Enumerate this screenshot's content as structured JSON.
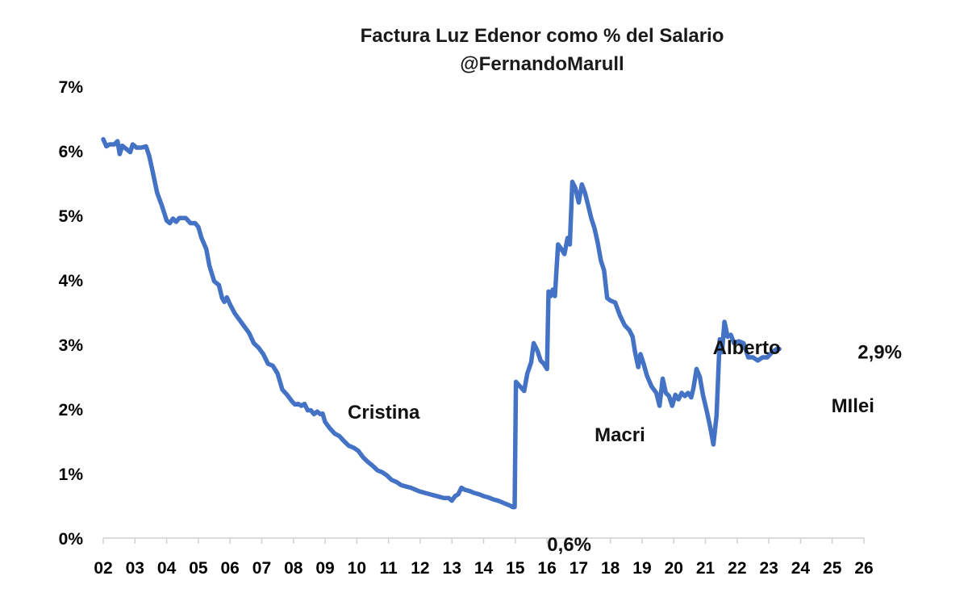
{
  "chart_data": {
    "type": "line",
    "title": "Factura Luz Edenor como % del Salario",
    "subtitle": "@FernandoMarull",
    "xlabel": "",
    "ylabel": "",
    "xlim": [
      2002,
      2026.2
    ],
    "ylim": [
      0,
      7
    ],
    "grid": false,
    "legend": "none",
    "line_color": "#4472C4",
    "y_ticks": [
      {
        "value": 0,
        "label": "0%"
      },
      {
        "value": 1,
        "label": "1%"
      },
      {
        "value": 2,
        "label": "2%"
      },
      {
        "value": 3,
        "label": "3%"
      },
      {
        "value": 4,
        "label": "4%"
      },
      {
        "value": 5,
        "label": "5%"
      },
      {
        "value": 6,
        "label": "6%"
      },
      {
        "value": 7,
        "label": "7%"
      }
    ],
    "x_ticks": [
      {
        "value": 2002,
        "label": "02"
      },
      {
        "value": 2003,
        "label": "03"
      },
      {
        "value": 2004,
        "label": "04"
      },
      {
        "value": 2005,
        "label": "05"
      },
      {
        "value": 2006,
        "label": "06"
      },
      {
        "value": 2007,
        "label": "07"
      },
      {
        "value": 2008,
        "label": "08"
      },
      {
        "value": 2009,
        "label": "09"
      },
      {
        "value": 2010,
        "label": "10"
      },
      {
        "value": 2011,
        "label": "11"
      },
      {
        "value": 2012,
        "label": "12"
      },
      {
        "value": 2013,
        "label": "13"
      },
      {
        "value": 2014,
        "label": "14"
      },
      {
        "value": 2015,
        "label": "15"
      },
      {
        "value": 2016,
        "label": "16"
      },
      {
        "value": 2017,
        "label": "17"
      },
      {
        "value": 2018,
        "label": "18"
      },
      {
        "value": 2019,
        "label": "19"
      },
      {
        "value": 2020,
        "label": "20"
      },
      {
        "value": 2021,
        "label": "21"
      },
      {
        "value": 2022,
        "label": "22"
      },
      {
        "value": 2023,
        "label": "23"
      },
      {
        "value": 2024,
        "label": "24"
      },
      {
        "value": 2025,
        "label": "25"
      },
      {
        "value": 2026,
        "label": "26"
      }
    ],
    "series": [
      {
        "points": [
          [
            2002.0,
            6.18
          ],
          [
            2002.1,
            6.07
          ],
          [
            2002.2,
            6.1
          ],
          [
            2002.35,
            6.1
          ],
          [
            2002.45,
            6.15
          ],
          [
            2002.52,
            5.95
          ],
          [
            2002.6,
            6.08
          ],
          [
            2002.75,
            6.02
          ],
          [
            2002.85,
            5.98
          ],
          [
            2002.93,
            6.1
          ],
          [
            2003.05,
            6.05
          ],
          [
            2003.2,
            6.05
          ],
          [
            2003.35,
            6.07
          ],
          [
            2003.45,
            5.92
          ],
          [
            2003.55,
            5.7
          ],
          [
            2003.7,
            5.35
          ],
          [
            2003.85,
            5.15
          ],
          [
            2004.0,
            4.92
          ],
          [
            2004.1,
            4.88
          ],
          [
            2004.2,
            4.95
          ],
          [
            2004.3,
            4.9
          ],
          [
            2004.4,
            4.96
          ],
          [
            2004.6,
            4.96
          ],
          [
            2004.75,
            4.88
          ],
          [
            2004.9,
            4.88
          ],
          [
            2005.0,
            4.82
          ],
          [
            2005.1,
            4.65
          ],
          [
            2005.25,
            4.48
          ],
          [
            2005.35,
            4.22
          ],
          [
            2005.5,
            3.98
          ],
          [
            2005.65,
            3.92
          ],
          [
            2005.75,
            3.72
          ],
          [
            2005.82,
            3.66
          ],
          [
            2005.9,
            3.73
          ],
          [
            2006.0,
            3.62
          ],
          [
            2006.15,
            3.48
          ],
          [
            2006.3,
            3.38
          ],
          [
            2006.45,
            3.28
          ],
          [
            2006.6,
            3.18
          ],
          [
            2006.75,
            3.02
          ],
          [
            2006.9,
            2.95
          ],
          [
            2007.05,
            2.85
          ],
          [
            2007.2,
            2.7
          ],
          [
            2007.35,
            2.67
          ],
          [
            2007.5,
            2.55
          ],
          [
            2007.65,
            2.3
          ],
          [
            2007.8,
            2.22
          ],
          [
            2007.95,
            2.12
          ],
          [
            2008.05,
            2.07
          ],
          [
            2008.15,
            2.08
          ],
          [
            2008.25,
            2.05
          ],
          [
            2008.35,
            2.08
          ],
          [
            2008.45,
            1.98
          ],
          [
            2008.55,
            1.98
          ],
          [
            2008.65,
            1.92
          ],
          [
            2008.75,
            1.96
          ],
          [
            2008.85,
            1.92
          ],
          [
            2008.92,
            1.93
          ],
          [
            2009.0,
            1.8
          ],
          [
            2009.15,
            1.7
          ],
          [
            2009.3,
            1.62
          ],
          [
            2009.45,
            1.58
          ],
          [
            2009.6,
            1.5
          ],
          [
            2009.75,
            1.43
          ],
          [
            2009.9,
            1.4
          ],
          [
            2010.05,
            1.35
          ],
          [
            2010.2,
            1.25
          ],
          [
            2010.35,
            1.18
          ],
          [
            2010.5,
            1.12
          ],
          [
            2010.65,
            1.05
          ],
          [
            2010.8,
            1.02
          ],
          [
            2010.95,
            0.97
          ],
          [
            2011.1,
            0.9
          ],
          [
            2011.25,
            0.87
          ],
          [
            2011.4,
            0.82
          ],
          [
            2011.55,
            0.8
          ],
          [
            2011.7,
            0.78
          ],
          [
            2011.85,
            0.75
          ],
          [
            2012.0,
            0.72
          ],
          [
            2012.15,
            0.7
          ],
          [
            2012.3,
            0.68
          ],
          [
            2012.45,
            0.66
          ],
          [
            2012.6,
            0.64
          ],
          [
            2012.75,
            0.62
          ],
          [
            2012.9,
            0.62
          ],
          [
            2013.0,
            0.58
          ],
          [
            2013.1,
            0.65
          ],
          [
            2013.2,
            0.68
          ],
          [
            2013.3,
            0.78
          ],
          [
            2013.4,
            0.75
          ],
          [
            2013.55,
            0.73
          ],
          [
            2013.7,
            0.7
          ],
          [
            2013.85,
            0.68
          ],
          [
            2014.0,
            0.65
          ],
          [
            2014.15,
            0.63
          ],
          [
            2014.3,
            0.6
          ],
          [
            2014.45,
            0.58
          ],
          [
            2014.6,
            0.55
          ],
          [
            2014.75,
            0.52
          ],
          [
            2014.85,
            0.5
          ],
          [
            2014.92,
            0.48
          ],
          [
            2014.98,
            0.48
          ],
          [
            2015.02,
            2.42
          ],
          [
            2015.15,
            2.35
          ],
          [
            2015.28,
            2.28
          ],
          [
            2015.38,
            2.55
          ],
          [
            2015.5,
            2.72
          ],
          [
            2015.58,
            3.02
          ],
          [
            2015.7,
            2.9
          ],
          [
            2015.8,
            2.75
          ],
          [
            2015.9,
            2.7
          ],
          [
            2016.0,
            2.62
          ],
          [
            2016.05,
            3.82
          ],
          [
            2016.12,
            3.75
          ],
          [
            2016.18,
            3.85
          ],
          [
            2016.25,
            3.75
          ],
          [
            2016.35,
            4.55
          ],
          [
            2016.45,
            4.48
          ],
          [
            2016.55,
            4.4
          ],
          [
            2016.65,
            4.65
          ],
          [
            2016.72,
            4.55
          ],
          [
            2016.8,
            5.52
          ],
          [
            2016.9,
            5.42
          ],
          [
            2017.0,
            5.2
          ],
          [
            2017.1,
            5.48
          ],
          [
            2017.2,
            5.35
          ],
          [
            2017.3,
            5.15
          ],
          [
            2017.4,
            4.95
          ],
          [
            2017.5,
            4.8
          ],
          [
            2017.6,
            4.58
          ],
          [
            2017.7,
            4.3
          ],
          [
            2017.8,
            4.15
          ],
          [
            2017.9,
            3.72
          ],
          [
            2018.0,
            3.68
          ],
          [
            2018.15,
            3.65
          ],
          [
            2018.3,
            3.45
          ],
          [
            2018.45,
            3.3
          ],
          [
            2018.6,
            3.22
          ],
          [
            2018.7,
            3.12
          ],
          [
            2018.78,
            2.88
          ],
          [
            2018.88,
            2.65
          ],
          [
            2018.95,
            2.85
          ],
          [
            2019.05,
            2.7
          ],
          [
            2019.15,
            2.52
          ],
          [
            2019.3,
            2.35
          ],
          [
            2019.45,
            2.25
          ],
          [
            2019.55,
            2.05
          ],
          [
            2019.65,
            2.47
          ],
          [
            2019.75,
            2.25
          ],
          [
            2019.85,
            2.2
          ],
          [
            2019.95,
            2.05
          ],
          [
            2020.05,
            2.22
          ],
          [
            2020.15,
            2.15
          ],
          [
            2020.25,
            2.25
          ],
          [
            2020.35,
            2.2
          ],
          [
            2020.45,
            2.25
          ],
          [
            2020.55,
            2.18
          ],
          [
            2020.62,
            2.32
          ],
          [
            2020.72,
            2.62
          ],
          [
            2020.82,
            2.5
          ],
          [
            2020.92,
            2.22
          ],
          [
            2021.05,
            1.95
          ],
          [
            2021.15,
            1.72
          ],
          [
            2021.25,
            1.45
          ],
          [
            2021.35,
            1.9
          ],
          [
            2021.45,
            3.08
          ],
          [
            2021.52,
            2.88
          ],
          [
            2021.6,
            3.35
          ],
          [
            2021.7,
            3.12
          ],
          [
            2021.8,
            3.15
          ],
          [
            2021.9,
            3.02
          ],
          [
            2022.05,
            3.05
          ],
          [
            2022.2,
            3.02
          ],
          [
            2022.35,
            2.8
          ],
          [
            2022.5,
            2.8
          ],
          [
            2022.65,
            2.75
          ],
          [
            2022.8,
            2.8
          ],
          [
            2022.95,
            2.8
          ],
          [
            2023.1,
            2.88
          ],
          [
            2023.25,
            2.93
          ],
          [
            2023.33,
            2.93
          ]
        ]
      }
    ],
    "annotations": [
      {
        "text": "Cristina",
        "x": 2010.85,
        "y": 1.95
      },
      {
        "text": "Macri",
        "x": 2018.3,
        "y": 1.6
      },
      {
        "text": "Alberto",
        "x": 2022.3,
        "y": 2.95
      },
      {
        "text": "MIlei",
        "x": 2025.65,
        "y": 2.05
      },
      {
        "text": "0,6%",
        "x": 2016.7,
        "y": -0.1
      },
      {
        "text": "2,9%",
        "x": 2026.5,
        "y": 2.88
      }
    ]
  }
}
